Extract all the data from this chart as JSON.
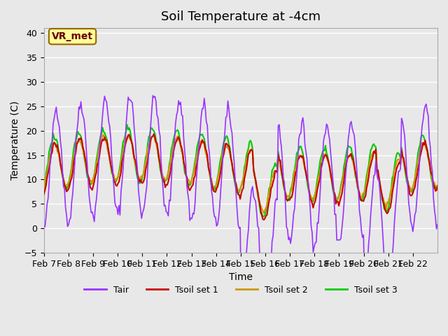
{
  "title": "Soil Temperature at -4cm",
  "xlabel": "Time",
  "ylabel": "Temperature (C)",
  "ylim": [
    -5,
    41
  ],
  "yticks": [
    -5,
    0,
    5,
    10,
    15,
    20,
    25,
    30,
    35,
    40
  ],
  "xtick_labels": [
    "Feb 7",
    "Feb 8",
    "Feb 9",
    "Feb 10",
    "Feb 11",
    "Feb 12",
    "Feb 13",
    "Feb 14",
    "Feb 15",
    "Feb 16",
    "Feb 17",
    "Feb 18",
    "Feb 19",
    "Feb 20",
    "Feb 21",
    "Feb 22"
  ],
  "line_colors": {
    "Tair": "#9933ff",
    "Tsoil1": "#cc0000",
    "Tsoil2": "#cc9900",
    "Tsoil3": "#00cc00"
  },
  "line_widths": {
    "Tair": 1.2,
    "Tsoil1": 1.5,
    "Tsoil2": 1.5,
    "Tsoil3": 1.5
  },
  "bg_color": "#e8e8e8",
  "plot_bg_color": "#e8e8e8",
  "grid_color": "#ffffff",
  "annotation_text": "VR_met",
  "annotation_box_color": "#ffff99",
  "annotation_border_color": "#996600",
  "legend_labels": [
    "Tair",
    "Tsoil set 1",
    "Tsoil set 2",
    "Tsoil set 3"
  ],
  "n_points": 384,
  "title_fontsize": 13,
  "axis_fontsize": 10,
  "tick_fontsize": 9
}
